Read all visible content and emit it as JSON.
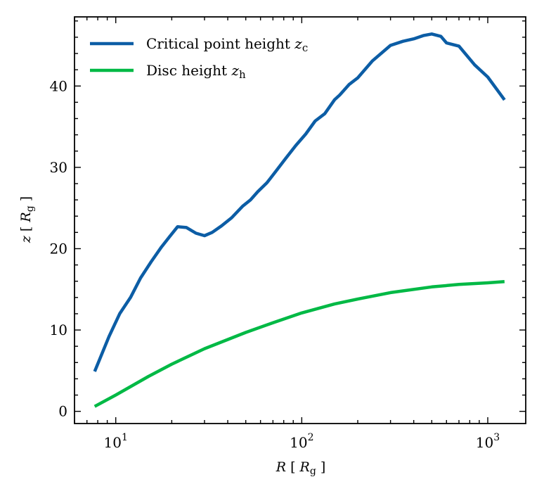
{
  "chart_data": {
    "type": "line",
    "xscale": "log",
    "xlim": [
      6,
      1600
    ],
    "ylim": [
      -1.5,
      48.5
    ],
    "xlabel": {
      "sym": "R",
      "unit_sym": "R",
      "unit_sub": "g"
    },
    "ylabel": {
      "sym": "z",
      "unit_sym": "R",
      "unit_sub": "g"
    },
    "xticks": [
      {
        "value": 10,
        "base": "10",
        "exp": "1"
      },
      {
        "value": 100,
        "base": "10",
        "exp": "2"
      },
      {
        "value": 1000,
        "base": "10",
        "exp": "3"
      }
    ],
    "yticks": [
      0,
      10,
      20,
      30,
      40
    ],
    "legend_position": "top-left",
    "grid": false,
    "series": [
      {
        "key": "critical",
        "legend_text": "Critical point height",
        "legend_sym": "z",
        "legend_sub": "c",
        "color": "#0c5da5",
        "x": [
          7.7,
          9.2,
          10.5,
          12,
          13.6,
          15.5,
          17.6,
          19.5,
          21.5,
          24,
          27,
          30,
          33,
          37,
          42,
          48,
          53,
          58,
          65,
          73,
          82,
          93,
          105,
          118,
          133,
          150,
          160,
          180,
          200,
          240,
          300,
          350,
          400,
          450,
          500,
          560,
          600,
          700,
          850,
          1000,
          1230
        ],
        "y": [
          4.9,
          9.2,
          12.0,
          14.0,
          16.4,
          18.4,
          20.2,
          21.5,
          22.7,
          22.6,
          21.9,
          21.6,
          22.0,
          22.8,
          23.8,
          25.2,
          26.0,
          27.0,
          28.1,
          29.6,
          31.1,
          32.7,
          34.1,
          35.7,
          36.6,
          38.3,
          38.9,
          40.2,
          41.0,
          43.1,
          45.0,
          45.5,
          45.8,
          46.2,
          46.4,
          46.1,
          45.3,
          44.9,
          42.6,
          41.1,
          38.3
        ]
      },
      {
        "key": "disc",
        "legend_text": "Disc height",
        "legend_sym": "z",
        "legend_sub": "h",
        "color": "#00b945",
        "x": [
          7.7,
          10,
          15,
          20,
          30,
          50,
          70,
          100,
          150,
          200,
          300,
          500,
          700,
          1000,
          1230
        ],
        "y": [
          0.6,
          2.0,
          4.3,
          5.8,
          7.7,
          9.7,
          10.9,
          12.1,
          13.2,
          13.8,
          14.6,
          15.3,
          15.6,
          15.8,
          15.95
        ]
      }
    ]
  }
}
